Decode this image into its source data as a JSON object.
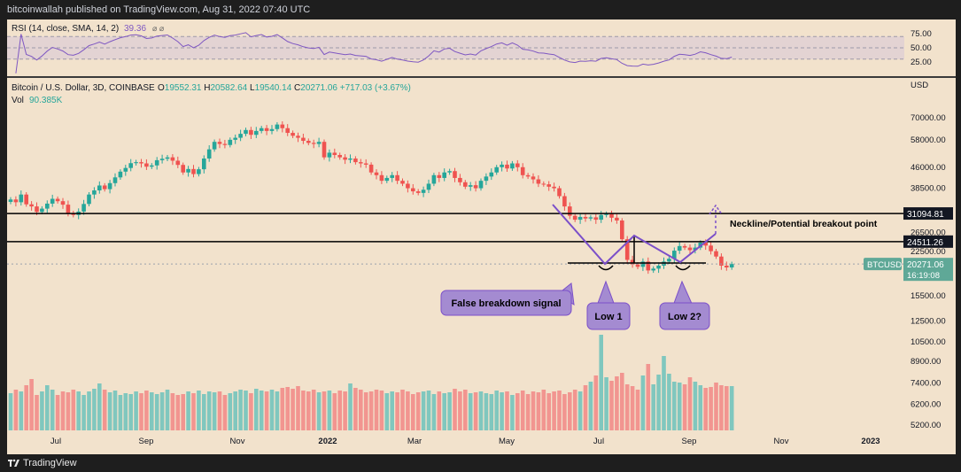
{
  "header": {
    "publisher": "bitcoinwallah published on TradingView.com, Aug 31, 2022 07:40 UTC"
  },
  "footer": {
    "brand": "TradingView"
  },
  "colors": {
    "bg": "#f2e2cc",
    "up": "#26a69a",
    "down": "#ef5350",
    "rsi": "#7e57c2",
    "callout": "#a48bd1",
    "neckline_line": "#000000"
  },
  "rsi_panel": {
    "label": "RSI (14, close, SMA, 14, 2)",
    "value": "39.36",
    "levels": [
      "75.00",
      "50.00",
      "25.00"
    ]
  },
  "main_panel": {
    "title": "Bitcoin / U.S. Dollar, 3D, COINBASE",
    "ohlc": {
      "o_label": "O",
      "o": "19552.31",
      "h_label": "H",
      "h": "20582.64",
      "l_label": "L",
      "l": "19540.14",
      "c_label": "C",
      "c": "20271.06",
      "chg": "+717.03 (+3.67%)"
    },
    "vol_label": "Vol",
    "vol_value": "90.385K",
    "currency": "USD",
    "symbol_tag": "BTCUSD",
    "price_tag": "20271.06",
    "countdown": "16:19:08",
    "level_tags": [
      "31094.81",
      "24511.26"
    ]
  },
  "annotations": {
    "neckline": "Neckline/Potential breakout point",
    "false_breakdown": "False breakdown signal",
    "low1": "Low 1",
    "low2": "Low 2?"
  },
  "chart_data": {
    "type": "candlestick",
    "y_scale": "log",
    "ylim": [
      5000,
      95000
    ],
    "y_ticks": [
      "70000.00",
      "58000.00",
      "46000.00",
      "38500.00",
      "31500.00",
      "26500.00",
      "22500.00",
      "15500.00",
      "12500.00",
      "10500.00",
      "8900.00",
      "7400.00",
      "6200.00",
      "5200.00"
    ],
    "x_ticks": [
      "Jul",
      "Sep",
      "Nov",
      "2022",
      "Mar",
      "May",
      "Jul",
      "Sep",
      "Nov",
      "2023"
    ],
    "horizontal_levels": [
      31094.81,
      24511.26
    ],
    "closes": [
      35000,
      34200,
      36500,
      33600,
      33000,
      31500,
      32400,
      33800,
      35200,
      34500,
      33500,
      31200,
      30700,
      31600,
      33700,
      36500,
      37800,
      39400,
      38200,
      40200,
      42200,
      44300,
      45700,
      47600,
      48000,
      47500,
      46200,
      46700,
      48800,
      49400,
      50000,
      48600,
      46900,
      44000,
      45300,
      43400,
      45200,
      49500,
      53500,
      57000,
      56000,
      55500,
      58000,
      59000,
      61000,
      63000,
      60500,
      62500,
      64000,
      62500,
      63500,
      66000,
      64000,
      61500,
      60000,
      59000,
      57500,
      56500,
      56000,
      57000,
      50000,
      52000,
      51000,
      50000,
      49000,
      49500,
      48000,
      47500,
      47000,
      44000,
      43000,
      41000,
      42000,
      43000,
      41000,
      40000,
      38500,
      37500,
      37000,
      38000,
      40000,
      43000,
      42000,
      44000,
      44500,
      42000,
      40500,
      39000,
      39500,
      38500,
      41000,
      42500,
      44000,
      46000,
      47000,
      45500,
      47500,
      46000,
      43000,
      42500,
      41500,
      40000,
      39800,
      39000,
      38500,
      36000,
      33000,
      30500,
      29500,
      30200,
      29800,
      30100,
      29500,
      30700,
      31000,
      30000,
      29300,
      25000,
      21000,
      20200,
      19800,
      20700,
      19200,
      19500,
      20000,
      20700,
      21200,
      22700,
      23600,
      23300,
      22800,
      23300,
      24300,
      23700,
      22600,
      21600,
      20000,
      19700,
      20271
    ],
    "volumes": [
      42,
      46,
      44,
      51,
      58,
      40,
      44,
      51,
      46,
      40,
      44,
      43,
      46,
      44,
      40,
      44,
      47,
      53,
      46,
      43,
      45,
      40,
      42,
      41,
      44,
      42,
      45,
      43,
      41,
      43,
      46,
      42,
      40,
      41,
      44,
      42,
      45,
      41,
      44,
      43,
      44,
      40,
      42,
      44,
      46,
      45,
      42,
      47,
      45,
      44,
      46,
      44,
      48,
      49,
      47,
      50,
      45,
      44,
      46,
      43,
      44,
      45,
      42,
      45,
      44,
      53,
      48,
      46,
      43,
      44,
      46,
      45,
      42,
      44,
      43,
      46,
      44,
      41,
      43,
      44,
      45,
      41,
      44,
      42,
      43,
      47,
      44,
      46,
      42,
      43,
      44,
      42,
      41,
      45,
      43,
      44,
      40,
      42,
      45,
      41,
      44,
      43,
      46,
      42,
      44,
      45,
      41,
      43,
      46,
      44,
      51,
      55,
      62,
      108,
      60,
      56,
      61,
      65,
      52,
      50,
      46,
      62,
      75,
      52,
      63,
      84,
      64,
      55,
      54,
      52,
      60,
      55,
      51,
      48,
      49,
      54,
      51,
      50,
      50
    ]
  }
}
